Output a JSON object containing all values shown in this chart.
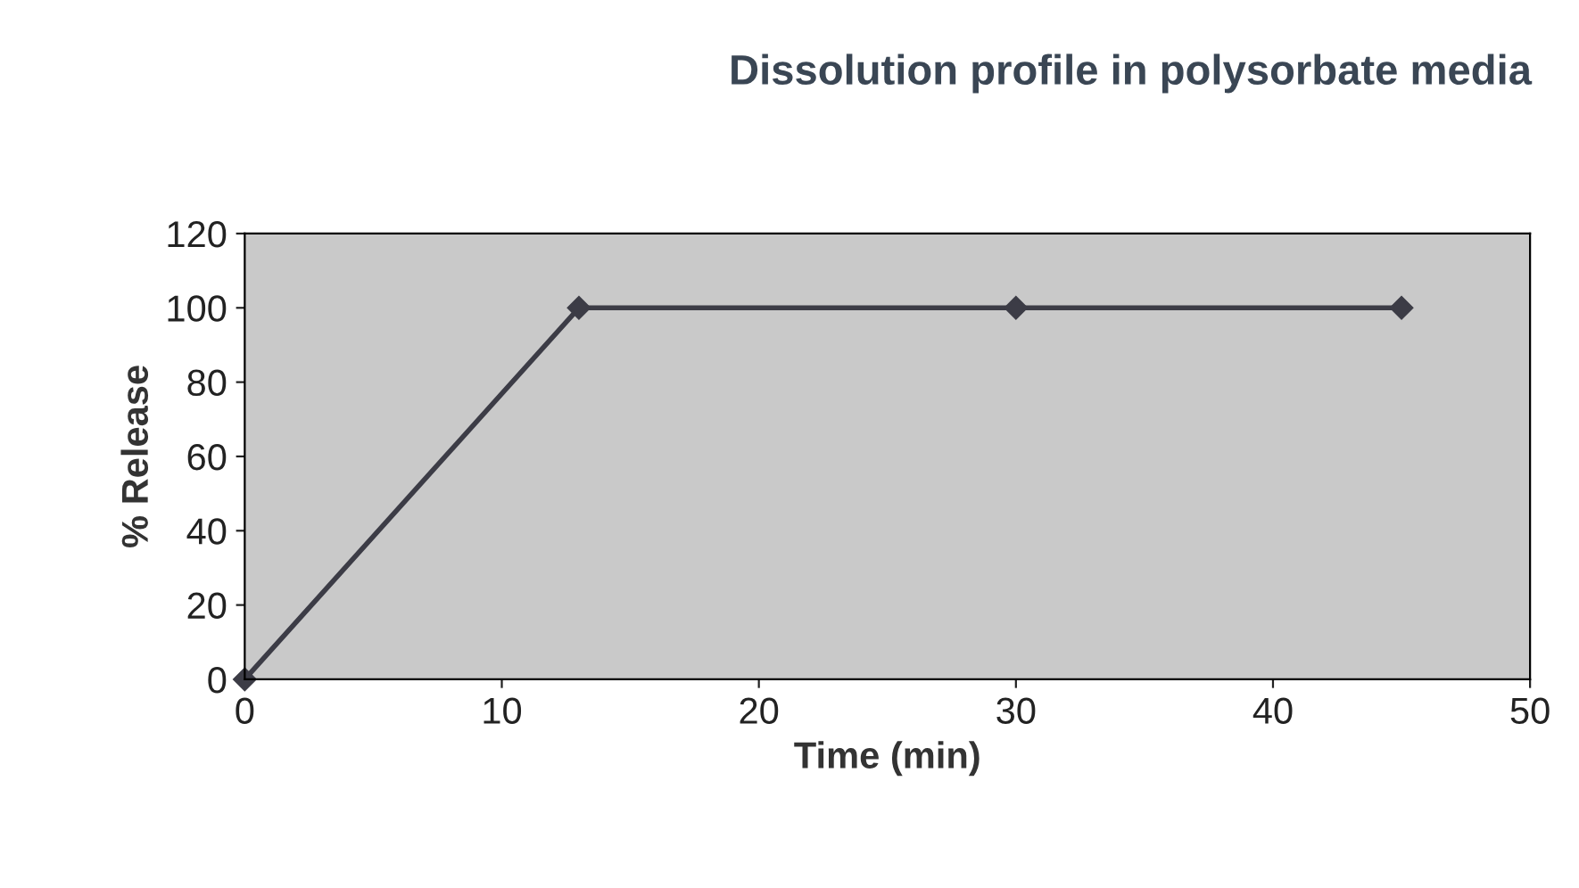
{
  "chart_data": {
    "type": "line",
    "title": "Dissolution profile in polysorbate media",
    "xlabel": "Time (min)",
    "ylabel": "% Release",
    "x": [
      0,
      13,
      30,
      45
    ],
    "series": [
      {
        "color": "#3c3c46",
        "values": [
          0,
          100,
          100,
          100
        ]
      }
    ],
    "xlim": [
      0,
      50
    ],
    "xticks": [
      0,
      10,
      20,
      30,
      40,
      50
    ],
    "ylim": [
      0,
      120
    ],
    "yticks": [
      0,
      20,
      40,
      60,
      80,
      100,
      120
    ],
    "grid": false,
    "legend": false,
    "marker": "diamond",
    "line_style": "solid"
  }
}
